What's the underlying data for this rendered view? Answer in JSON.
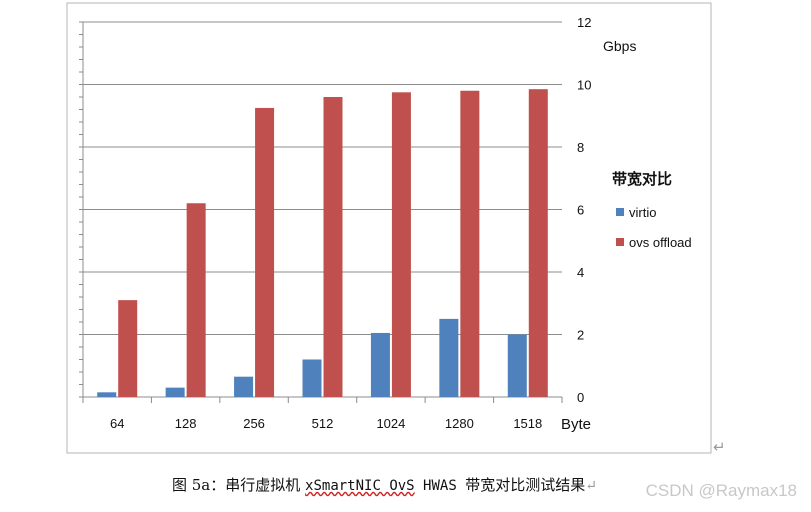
{
  "chart_data": {
    "type": "bar",
    "categories": [
      "64",
      "128",
      "256",
      "512",
      "1024",
      "1280",
      "1518"
    ],
    "xlabel": "Byte",
    "ylabel": "Gbps",
    "ylim": [
      0,
      12
    ],
    "yticks": [
      "0",
      "2",
      "4",
      "6",
      "8",
      "10",
      "12"
    ],
    "y_axis_side": "right",
    "grid": true,
    "legend": {
      "title": "带宽对比",
      "placement": "right"
    },
    "series": [
      {
        "name": "virtio",
        "color": "#4f81bd",
        "values": [
          0.15,
          0.3,
          0.65,
          1.2,
          2.05,
          2.5,
          2.0
        ]
      },
      {
        "name": "ovs offload",
        "color": "#c0504d",
        "values": [
          3.1,
          6.2,
          9.25,
          9.6,
          9.75,
          9.8,
          9.85
        ]
      }
    ]
  },
  "caption": {
    "prefix": "图 5a：串行虚拟机 ",
    "underlined": "xSmartNIC OvS",
    "middle": " HWAS ",
    "suffix": "带宽对比测试结果"
  },
  "paragraph_mark": "↵",
  "watermark": "CSDN @Raymax18"
}
